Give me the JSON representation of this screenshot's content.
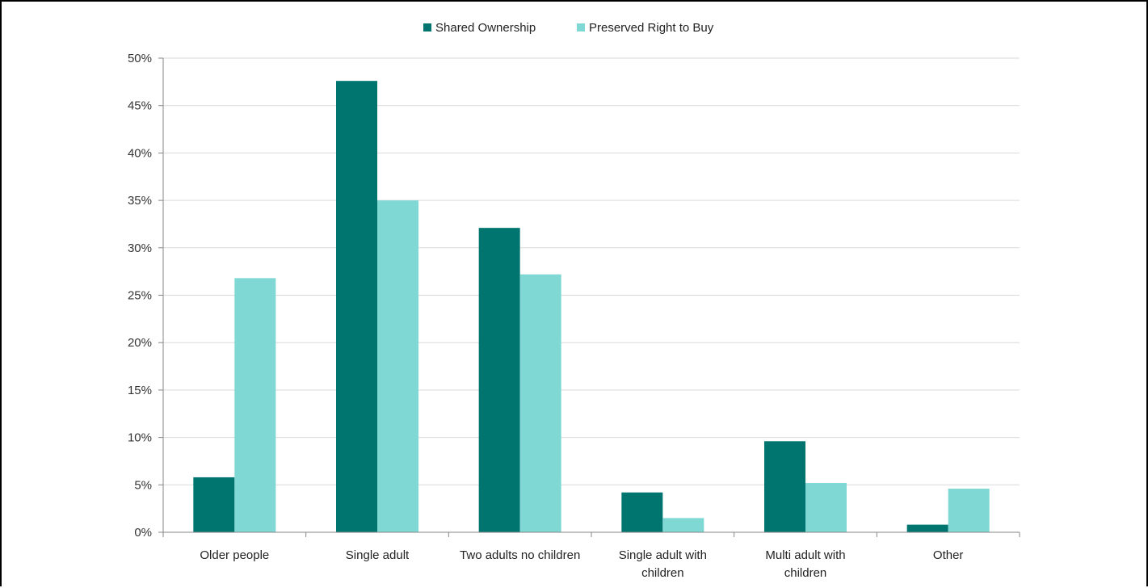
{
  "chart_data": {
    "type": "bar",
    "title": "",
    "xlabel": "",
    "ylabel": "",
    "categories": [
      [
        "Older people"
      ],
      [
        "Single adult"
      ],
      [
        "Two adults no children"
      ],
      [
        "Single adult with",
        "children"
      ],
      [
        "Multi adult with",
        "children"
      ],
      [
        "Other"
      ]
    ],
    "series": [
      {
        "name": "Shared Ownership",
        "color": "#007570",
        "values": [
          5.8,
          47.6,
          32.1,
          4.2,
          9.6,
          0.8
        ]
      },
      {
        "name": "Preserved Right to Buy",
        "color": "#80D8D4",
        "values": [
          26.8,
          35.0,
          27.2,
          1.5,
          5.2,
          4.6
        ]
      }
    ],
    "ylim": [
      0,
      50
    ],
    "yticks": [
      0,
      5,
      10,
      15,
      20,
      25,
      30,
      35,
      40,
      45,
      50
    ],
    "ytick_labels": [
      "0%",
      "5%",
      "10%",
      "15%",
      "20%",
      "25%",
      "30%",
      "35%",
      "40%",
      "45%",
      "50%"
    ],
    "grid": true,
    "legend": "top-center"
  }
}
